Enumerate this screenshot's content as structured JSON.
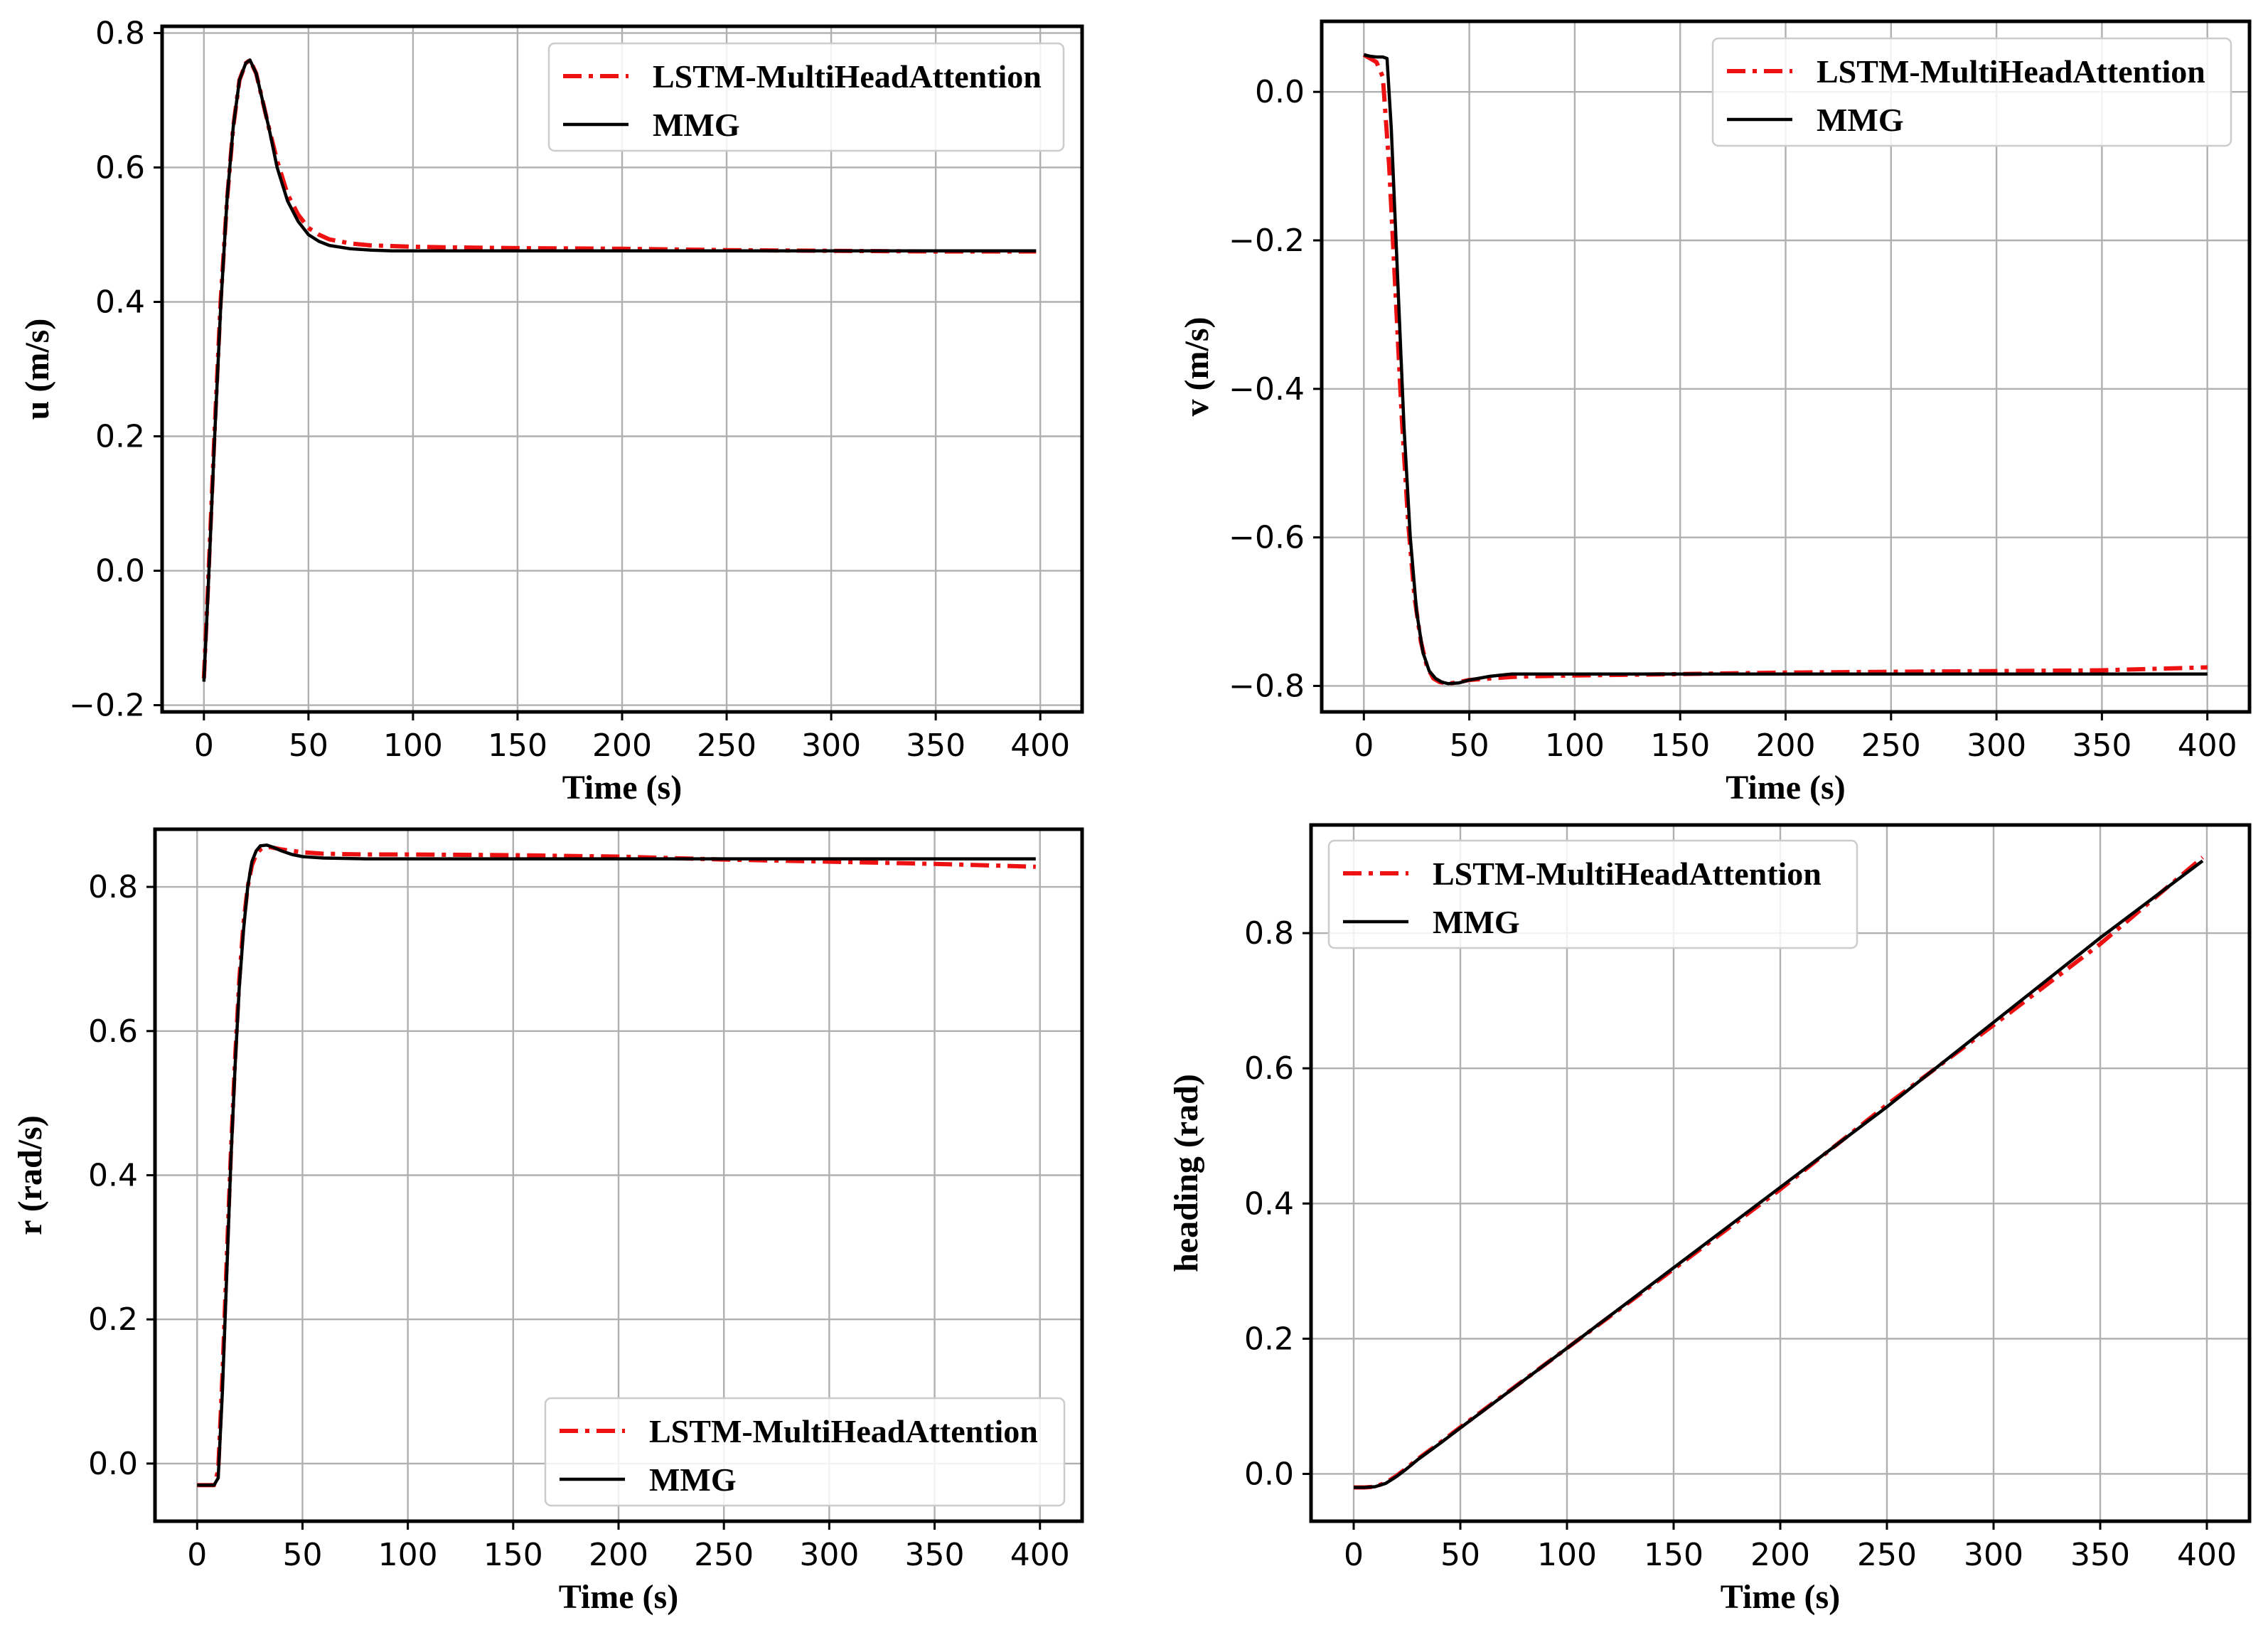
{
  "colors": {
    "lstm": "#ee1111",
    "mmg": "#000000"
  },
  "chart_data": [
    {
      "type": "line",
      "xlabel": "Time (s)",
      "ylabel": "u (m/s)",
      "xlim": [
        -20,
        420
      ],
      "ylim": [
        -0.21,
        0.81
      ],
      "xticks": [
        0,
        50,
        100,
        150,
        200,
        250,
        300,
        350,
        400
      ],
      "yticks": [
        -0.2,
        0.0,
        0.2,
        0.4,
        0.6,
        0.8
      ],
      "ytick_labels": [
        "−0.2",
        "0.0",
        "0.2",
        "0.4",
        "0.6",
        "0.8"
      ],
      "grid": true,
      "legend": "upper right",
      "series": [
        {
          "name": "LSTM-MultiHeadAttention",
          "style": "dashdot",
          "color": "#ee1111",
          "x": [
            0,
            2,
            5,
            8,
            11,
            14,
            17,
            20,
            22,
            25,
            28,
            31,
            35,
            40,
            45,
            50,
            55,
            60,
            70,
            80,
            90,
            100,
            120,
            150,
            200,
            250,
            300,
            350,
            398
          ],
          "y": [
            -0.16,
            -0.02,
            0.2,
            0.4,
            0.55,
            0.66,
            0.73,
            0.755,
            0.76,
            0.74,
            0.7,
            0.66,
            0.61,
            0.56,
            0.53,
            0.51,
            0.5,
            0.493,
            0.487,
            0.484,
            0.483,
            0.482,
            0.481,
            0.48,
            0.479,
            0.477,
            0.476,
            0.475,
            0.475
          ]
        },
        {
          "name": "MMG",
          "style": "solid",
          "color": "#000000",
          "x": [
            0,
            2,
            5,
            8,
            11,
            14,
            17,
            20,
            22,
            25,
            28,
            31,
            35,
            40,
            45,
            50,
            55,
            60,
            70,
            80,
            90,
            100,
            120,
            150,
            200,
            250,
            300,
            350,
            398
          ],
          "y": [
            -0.165,
            -0.03,
            0.19,
            0.39,
            0.55,
            0.66,
            0.73,
            0.755,
            0.76,
            0.74,
            0.7,
            0.66,
            0.6,
            0.55,
            0.52,
            0.5,
            0.49,
            0.484,
            0.479,
            0.477,
            0.476,
            0.476,
            0.476,
            0.476,
            0.476,
            0.476,
            0.476,
            0.476,
            0.476
          ]
        }
      ]
    },
    {
      "type": "line",
      "xlabel": "Time (s)",
      "ylabel": "v (m/s)",
      "xlim": [
        -20,
        420
      ],
      "ylim": [
        -0.835,
        0.095
      ],
      "xticks": [
        0,
        50,
        100,
        150,
        200,
        250,
        300,
        350,
        400
      ],
      "yticks": [
        -0.8,
        -0.6,
        -0.4,
        -0.2,
        0.0
      ],
      "ytick_labels": [
        "−0.8",
        "−0.6",
        "−0.4",
        "−0.2",
        "0.0"
      ],
      "grid": true,
      "legend": "upper right",
      "series": [
        {
          "name": "LSTM-MultiHeadAttention",
          "style": "dashdot",
          "color": "#ee1111",
          "x": [
            0,
            3,
            6,
            9,
            12,
            15,
            18,
            21,
            24,
            27,
            30,
            33,
            36,
            40,
            45,
            50,
            60,
            70,
            80,
            100,
            150,
            200,
            250,
            300,
            350,
            400
          ],
          "y": [
            0.05,
            0.045,
            0.04,
            0.02,
            -0.1,
            -0.27,
            -0.44,
            -0.58,
            -0.68,
            -0.74,
            -0.775,
            -0.79,
            -0.795,
            -0.797,
            -0.795,
            -0.792,
            -0.79,
            -0.788,
            -0.787,
            -0.786,
            -0.784,
            -0.782,
            -0.781,
            -0.78,
            -0.779,
            -0.775
          ]
        },
        {
          "name": "MMG",
          "style": "solid",
          "color": "#000000",
          "x": [
            0,
            3,
            6,
            9,
            11,
            13,
            16,
            19,
            22,
            25,
            28,
            31,
            34,
            37,
            40,
            45,
            50,
            60,
            70,
            80,
            100,
            150,
            200,
            250,
            300,
            350,
            400
          ],
          "y": [
            0.05,
            0.048,
            0.047,
            0.047,
            0.045,
            -0.05,
            -0.25,
            -0.45,
            -0.6,
            -0.7,
            -0.755,
            -0.78,
            -0.79,
            -0.795,
            -0.797,
            -0.796,
            -0.792,
            -0.787,
            -0.784,
            -0.784,
            -0.784,
            -0.784,
            -0.784,
            -0.784,
            -0.784,
            -0.784,
            -0.784
          ]
        }
      ]
    },
    {
      "type": "line",
      "xlabel": "Time (s)",
      "ylabel": "r (rad/s)",
      "xlim": [
        -20,
        420
      ],
      "ylim": [
        -0.08,
        0.88
      ],
      "xticks": [
        0,
        50,
        100,
        150,
        200,
        250,
        300,
        350,
        400
      ],
      "yticks": [
        0.0,
        0.2,
        0.4,
        0.6,
        0.8
      ],
      "ytick_labels": [
        "0.0",
        "0.2",
        "0.4",
        "0.6",
        "0.8"
      ],
      "grid": true,
      "legend": "lower right",
      "series": [
        {
          "name": "LSTM-MultiHeadAttention",
          "style": "dashdot",
          "color": "#ee1111",
          "x": [
            0,
            4,
            8,
            10,
            12,
            14,
            16,
            18,
            20,
            22,
            24,
            26,
            28,
            30,
            32,
            35,
            40,
            45,
            50,
            60,
            80,
            100,
            150,
            200,
            250,
            300,
            350,
            398
          ],
          "y": [
            -0.03,
            -0.03,
            -0.03,
            -0.01,
            0.12,
            0.28,
            0.43,
            0.56,
            0.67,
            0.75,
            0.8,
            0.83,
            0.845,
            0.852,
            0.855,
            0.855,
            0.852,
            0.85,
            0.848,
            0.846,
            0.845,
            0.845,
            0.844,
            0.842,
            0.838,
            0.835,
            0.832,
            0.828
          ]
        },
        {
          "name": "MMG",
          "style": "solid",
          "color": "#000000",
          "x": [
            0,
            4,
            8,
            10,
            12,
            14,
            16,
            18,
            20,
            22,
            24,
            26,
            28,
            30,
            33,
            36,
            40,
            45,
            50,
            60,
            80,
            100,
            150,
            200,
            250,
            300,
            350,
            398
          ],
          "y": [
            -0.03,
            -0.03,
            -0.03,
            -0.02,
            0.1,
            0.26,
            0.42,
            0.55,
            0.66,
            0.74,
            0.8,
            0.835,
            0.85,
            0.857,
            0.858,
            0.855,
            0.85,
            0.845,
            0.842,
            0.84,
            0.839,
            0.839,
            0.839,
            0.839,
            0.839,
            0.839,
            0.839,
            0.839
          ]
        }
      ]
    },
    {
      "type": "line",
      "xlabel": "Time (s)",
      "ylabel": "heading (rad)",
      "xlim": [
        -20,
        420
      ],
      "ylim": [
        -0.07,
        0.96
      ],
      "xticks": [
        0,
        50,
        100,
        150,
        200,
        250,
        300,
        350,
        400
      ],
      "yticks": [
        0.0,
        0.2,
        0.4,
        0.6,
        0.8
      ],
      "ytick_labels": [
        "0.0",
        "0.2",
        "0.4",
        "0.6",
        "0.8"
      ],
      "grid": true,
      "legend": "upper left",
      "series": [
        {
          "name": "LSTM-MultiHeadAttention",
          "style": "dashdot",
          "color": "#ee1111",
          "x": [
            0,
            5,
            10,
            15,
            20,
            25,
            30,
            40,
            50,
            100,
            150,
            200,
            250,
            300,
            350,
            398
          ],
          "y": [
            -0.02,
            -0.02,
            -0.019,
            -0.013,
            -0.003,
            0.009,
            0.022,
            0.045,
            0.069,
            0.186,
            0.303,
            0.421,
            0.546,
            0.664,
            0.784,
            0.912
          ]
        },
        {
          "name": "MMG",
          "style": "solid",
          "color": "#000000",
          "x": [
            0,
            5,
            10,
            15,
            20,
            25,
            30,
            40,
            50,
            100,
            150,
            200,
            250,
            300,
            350,
            398
          ],
          "y": [
            -0.02,
            -0.02,
            -0.019,
            -0.014,
            -0.004,
            0.008,
            0.021,
            0.044,
            0.068,
            0.186,
            0.305,
            0.424,
            0.543,
            0.668,
            0.793,
            0.907
          ]
        }
      ]
    }
  ]
}
